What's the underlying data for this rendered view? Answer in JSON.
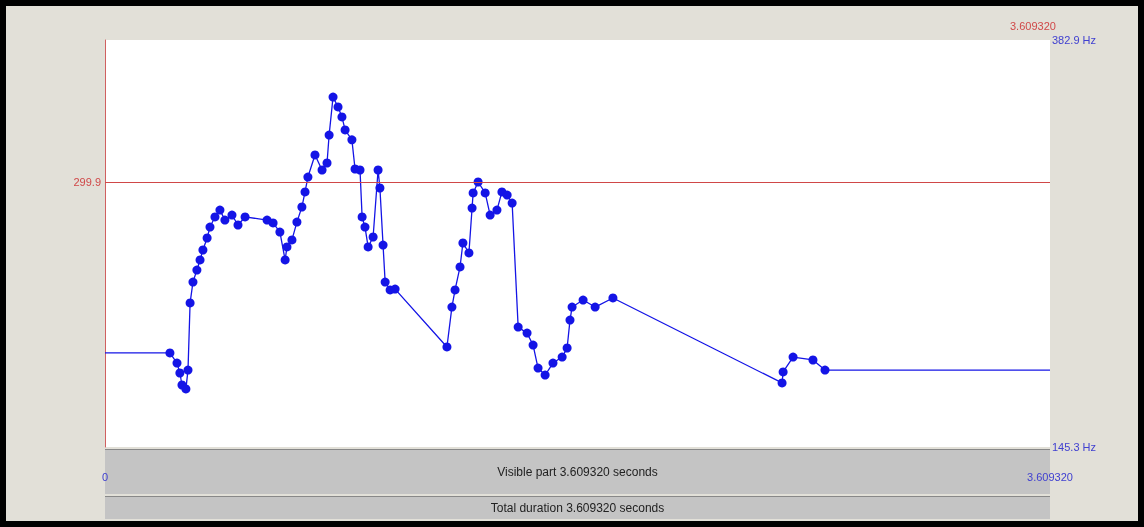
{
  "chart_data": {
    "type": "line",
    "xlim": [
      0,
      3.60932
    ],
    "ylim": [
      145.3,
      382.9
    ],
    "xticks": [
      {
        "value": 0,
        "label": "0"
      },
      {
        "value": 3.60932,
        "label": "3.609320"
      }
    ],
    "yticks": [
      {
        "value": 145.3,
        "label": "145.3 Hz"
      },
      {
        "value": 382.9,
        "label": "382.9 Hz"
      }
    ],
    "grid": false,
    "ref_lines": [
      {
        "axis": "y",
        "value": 299.9,
        "label": "299.9",
        "color": "#d04848"
      }
    ],
    "annotations": [
      "3.609320",
      "Visible part 3.609320 seconds",
      "Total duration 3.609320 seconds"
    ],
    "series": [
      {
        "color": "#1414e6",
        "marker": "circle",
        "x": [
          0.248,
          0.275,
          0.286,
          0.294,
          0.309,
          0.317,
          0.325,
          0.336,
          0.351,
          0.363,
          0.374,
          0.39,
          0.401,
          0.42,
          0.439,
          0.458,
          0.485,
          0.508,
          0.535,
          0.619,
          0.642,
          0.668,
          0.688,
          0.695,
          0.714,
          0.733,
          0.752,
          0.764,
          0.775,
          0.802,
          0.829,
          0.848,
          0.856,
          0.871,
          0.89,
          0.905,
          0.917,
          0.943,
          0.955,
          0.974,
          0.982,
          0.993,
          1.005,
          1.024,
          1.043,
          1.05,
          1.062,
          1.07,
          1.089,
          1.108,
          1.306,
          1.325,
          1.337,
          1.356,
          1.367,
          1.39,
          1.402,
          1.406,
          1.425,
          1.452,
          1.471,
          1.497,
          1.516,
          1.536,
          1.555,
          1.578,
          1.612,
          1.635,
          1.654,
          1.681,
          1.711,
          1.746,
          1.765,
          1.776,
          1.784,
          1.826,
          1.872,
          1.94,
          2.586,
          2.59,
          2.628,
          2.704,
          2.75
        ],
        "values": [
          200.2,
          194.3,
          188.5,
          181.5,
          179.2,
          190.2,
          229.4,
          241.6,
          248.6,
          254.5,
          260.3,
          267.3,
          273.7,
          279.6,
          283.6,
          277.8,
          280.7,
          274.9,
          279.6,
          277.8,
          276.1,
          270.8,
          254.5,
          262.1,
          266.2,
          276.6,
          285.4,
          294.2,
          302.9,
          315.8,
          307.0,
          311.1,
          327.4,
          349.6,
          343.8,
          338.0,
          330.4,
          324.6,
          307.6,
          307.0,
          279.6,
          273.7,
          262.1,
          267.9,
          307.0,
          296.5,
          263.2,
          241.6,
          237.0,
          237.5,
          203.7,
          227.0,
          237.0,
          250.4,
          264.4,
          258.6,
          284.8,
          293.6,
          300.0,
          293.6,
          280.7,
          283.6,
          294.2,
          292.4,
          287.7,
          215.3,
          211.8,
          204.8,
          191.4,
          187.3,
          194.3,
          197.8,
          203.1,
          219.4,
          227.0,
          231.1,
          227.0,
          232.3,
          182.7,
          189.1,
          197.8,
          196.1,
          190.2
        ]
      },
      {
        "color": "#1414e6",
        "marker": "none",
        "x": [
          0,
          0.248
        ],
        "values": [
          200.2,
          200.2
        ]
      },
      {
        "color": "#1414e6",
        "marker": "none",
        "x": [
          2.75,
          3.60932
        ],
        "values": [
          190.2,
          190.2
        ]
      }
    ]
  }
}
